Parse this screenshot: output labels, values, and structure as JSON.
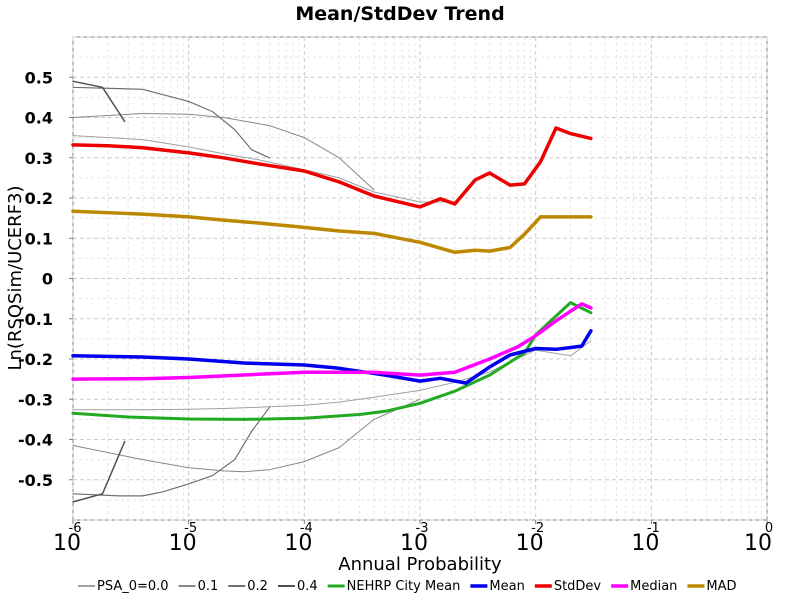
{
  "chart_data": {
    "type": "line",
    "title": "Mean/StdDev Trend",
    "xlabel": "Annual Probability",
    "ylabel": "Ln(RSQSim/UCERF3)",
    "x_scale": "log",
    "xlim": [
      1e-06,
      1
    ],
    "ylim": [
      -0.6,
      0.6
    ],
    "x_ticks": [
      {
        "base": "10",
        "exp": "-6"
      },
      {
        "base": "10",
        "exp": "-5"
      },
      {
        "base": "10",
        "exp": "-4"
      },
      {
        "base": "10",
        "exp": "-3"
      },
      {
        "base": "10",
        "exp": "-2"
      },
      {
        "base": "10",
        "exp": "-1"
      },
      {
        "base": "10",
        "exp": "0"
      }
    ],
    "y_ticks": [
      {
        "value": -0.5,
        "label": "-0.5"
      },
      {
        "value": -0.4,
        "label": "-0.4"
      },
      {
        "value": -0.3,
        "label": "-0.3"
      },
      {
        "value": -0.2,
        "label": "-0.2"
      },
      {
        "value": -0.1,
        "label": "-0.1"
      },
      {
        "value": 0,
        "label": "0"
      },
      {
        "value": 0.1,
        "label": "0.1"
      },
      {
        "value": 0.2,
        "label": "0.2"
      },
      {
        "value": 0.3,
        "label": "0.3"
      },
      {
        "value": 0.4,
        "label": "0.4"
      },
      {
        "value": 0.5,
        "label": "0.5"
      }
    ],
    "grid": true,
    "legend_position": "bottom",
    "series": [
      {
        "name": "PSA_0=0.0",
        "color": "#a0a0a0",
        "width": 1,
        "legend": true,
        "x": [
          1e-06,
          2e-06,
          4e-06,
          1e-05,
          2e-05,
          4e-05,
          0.0001,
          0.0002,
          0.0004,
          0.001,
          0.002,
          0.004,
          0.01,
          0.02,
          0.03
        ],
        "y": [
          -0.326,
          -0.326,
          -0.326,
          -0.325,
          -0.323,
          -0.32,
          -0.315,
          -0.307,
          -0.295,
          -0.278,
          -0.258,
          -0.232,
          -0.178,
          -0.192,
          -0.155
        ]
      },
      {
        "name": "",
        "color": "#a0a0a0",
        "width": 1,
        "legend": false,
        "x": [
          1e-06,
          4e-06,
          1e-05,
          2e-05,
          4e-05,
          0.0001,
          0.0002,
          0.0004,
          0.001,
          0.002
        ],
        "y": [
          0.355,
          0.345,
          0.327,
          0.31,
          0.295,
          0.27,
          0.25,
          0.215,
          0.19,
          0.19
        ]
      },
      {
        "name": "0.1",
        "color": "#888888",
        "width": 1,
        "legend": true,
        "x": [
          1e-06,
          4e-06,
          1e-05,
          2e-05,
          3e-05,
          5e-05,
          0.0001,
          0.0002,
          0.0004,
          0.001
        ],
        "y": [
          -0.415,
          -0.45,
          -0.47,
          -0.478,
          -0.48,
          -0.475,
          -0.455,
          -0.42,
          -0.35,
          -0.3
        ]
      },
      {
        "name": "",
        "color": "#888888",
        "width": 1,
        "legend": false,
        "x": [
          1e-06,
          4e-06,
          1e-05,
          2e-05,
          5e-05,
          0.0001,
          0.0002,
          0.0004
        ],
        "y": [
          0.4,
          0.41,
          0.408,
          0.4,
          0.38,
          0.35,
          0.3,
          0.22
        ]
      },
      {
        "name": "0.2",
        "color": "#707070",
        "width": 1.2,
        "legend": true,
        "x": [
          1e-06,
          2.5e-06,
          4e-06,
          6e-06,
          1e-05,
          1.6e-05,
          2.5e-05,
          3.5e-05,
          5e-05
        ],
        "y": [
          -0.535,
          -0.54,
          -0.54,
          -0.53,
          -0.51,
          -0.49,
          -0.45,
          -0.38,
          -0.32
        ]
      },
      {
        "name": "",
        "color": "#707070",
        "width": 1.2,
        "legend": false,
        "x": [
          1e-06,
          4e-06,
          1e-05,
          1.6e-05,
          2.5e-05,
          3.5e-05,
          5e-05
        ],
        "y": [
          0.475,
          0.47,
          0.44,
          0.415,
          0.37,
          0.32,
          0.3
        ]
      },
      {
        "name": "0.4",
        "color": "#505050",
        "width": 1.5,
        "legend": true,
        "x": [
          1e-06,
          1.8e-06,
          2.8e-06
        ],
        "y": [
          -0.555,
          -0.535,
          -0.405
        ]
      },
      {
        "name": "",
        "color": "#505050",
        "width": 1.5,
        "legend": false,
        "x": [
          1e-06,
          1.8e-06,
          2.8e-06
        ],
        "y": [
          0.49,
          0.475,
          0.39
        ]
      },
      {
        "name": "NEHRP City Mean",
        "color": "#22aa22",
        "width": 3,
        "legend": true,
        "x": [
          1e-06,
          3e-06,
          1e-05,
          3e-05,
          0.0001,
          0.0003,
          0.0005,
          0.001,
          0.002,
          0.004,
          0.008,
          0.01,
          0.02,
          0.03
        ],
        "y": [
          -0.335,
          -0.344,
          -0.349,
          -0.35,
          -0.347,
          -0.338,
          -0.33,
          -0.31,
          -0.28,
          -0.24,
          -0.185,
          -0.14,
          -0.06,
          -0.085
        ]
      },
      {
        "name": "Mean",
        "color": "#0000ee",
        "width": 3.5,
        "legend": true,
        "x": [
          1e-06,
          4e-06,
          1e-05,
          3e-05,
          0.0001,
          0.0002,
          0.0005,
          0.001,
          0.0015,
          0.0025,
          0.004,
          0.006,
          0.01,
          0.015,
          0.025,
          0.03
        ],
        "y": [
          -0.192,
          -0.195,
          -0.2,
          -0.21,
          -0.215,
          -0.223,
          -0.24,
          -0.255,
          -0.248,
          -0.26,
          -0.22,
          -0.19,
          -0.174,
          -0.176,
          -0.168,
          -0.13
        ]
      },
      {
        "name": "StdDev",
        "color": "#ee0000",
        "width": 3.5,
        "legend": true,
        "x": [
          1e-06,
          2e-06,
          4e-06,
          1e-05,
          2e-05,
          4e-05,
          0.0001,
          0.0002,
          0.0004,
          0.001,
          0.0015,
          0.002,
          0.003,
          0.004,
          0.006,
          0.008,
          0.011,
          0.015,
          0.02,
          0.03
        ],
        "y": [
          0.332,
          0.33,
          0.325,
          0.312,
          0.3,
          0.285,
          0.267,
          0.24,
          0.205,
          0.178,
          0.198,
          0.185,
          0.245,
          0.262,
          0.232,
          0.235,
          0.29,
          0.374,
          0.36,
          0.348
        ]
      },
      {
        "name": "Median",
        "color": "#ff00ff",
        "width": 3.5,
        "legend": true,
        "x": [
          1e-06,
          4e-06,
          1e-05,
          4e-05,
          0.0001,
          0.0004,
          0.001,
          0.002,
          0.004,
          0.007,
          0.01,
          0.015,
          0.025,
          0.03
        ],
        "y": [
          -0.25,
          -0.249,
          -0.246,
          -0.238,
          -0.233,
          -0.233,
          -0.24,
          -0.233,
          -0.2,
          -0.17,
          -0.142,
          -0.105,
          -0.063,
          -0.073
        ]
      },
      {
        "name": "MAD",
        "color": "#bb8800",
        "width": 3.5,
        "legend": true,
        "x": [
          1e-06,
          4e-06,
          1e-05,
          2e-05,
          4e-05,
          0.0001,
          0.0002,
          0.0004,
          0.001,
          0.002,
          0.003,
          0.004,
          0.006,
          0.008,
          0.011,
          0.015,
          0.02,
          0.03
        ],
        "y": [
          0.167,
          0.16,
          0.153,
          0.145,
          0.138,
          0.127,
          0.118,
          0.112,
          0.09,
          0.065,
          0.07,
          0.068,
          0.077,
          0.11,
          0.153,
          0.153,
          0.153,
          0.153
        ]
      }
    ]
  }
}
